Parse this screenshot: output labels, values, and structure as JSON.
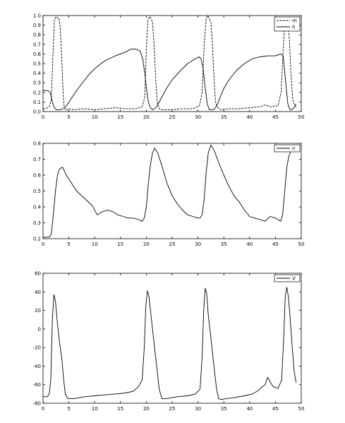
{
  "chart_data": [
    {
      "type": "line",
      "xlim": [
        0,
        50
      ],
      "ylim": [
        0,
        1.0
      ],
      "xticks": [
        0,
        5,
        10,
        15,
        20,
        25,
        30,
        35,
        40,
        45,
        50
      ],
      "yticks": [
        0.0,
        0.1,
        0.2,
        0.3,
        0.4,
        0.5,
        0.6,
        0.7,
        0.8,
        0.9,
        1.0
      ],
      "ytick_labels": [
        "0.0",
        "0.1",
        "0.2",
        "0.3",
        "0.4",
        "0.5",
        "0.6",
        "0.7",
        "0.8",
        "0.9",
        "1.0"
      ],
      "grid": false,
      "legend_position": "top-right",
      "series": [
        {
          "name": "m",
          "style": "dashed",
          "color": "#000000",
          "x": [
            0.0,
            0.6,
            1.2,
            1.6,
            1.9,
            2.2,
            2.4,
            2.6,
            2.9,
            3.1,
            3.3,
            3.5,
            3.7,
            3.9,
            4.1,
            4.3,
            4.6,
            5.0,
            6.0,
            8.0,
            10.0,
            12.0,
            14.0,
            16.0,
            18.0,
            19.2,
            19.7,
            20.0,
            20.3,
            20.6,
            20.9,
            21.2,
            21.5,
            21.8,
            22.1,
            22.5,
            23.0,
            25.0,
            27.0,
            29.0,
            30.3,
            30.8,
            31.2,
            31.6,
            31.9,
            32.2,
            32.5,
            32.8,
            33.1,
            33.4,
            33.8,
            34.5,
            36.0,
            38.0,
            40.0,
            42.0,
            43.0,
            44.0,
            45.5,
            46.1,
            46.5,
            46.8,
            47.1,
            47.4,
            47.7,
            48.0,
            48.3,
            48.6,
            49.0
          ],
          "y": [
            0.03,
            0.03,
            0.05,
            0.12,
            0.55,
            0.95,
            0.98,
            0.99,
            0.97,
            0.97,
            0.88,
            0.7,
            0.45,
            0.18,
            0.05,
            0.02,
            0.02,
            0.03,
            0.02,
            0.03,
            0.02,
            0.03,
            0.04,
            0.03,
            0.03,
            0.05,
            0.15,
            0.65,
            0.95,
            0.99,
            0.97,
            0.93,
            0.7,
            0.35,
            0.1,
            0.03,
            0.02,
            0.02,
            0.03,
            0.03,
            0.06,
            0.2,
            0.7,
            0.97,
            1.0,
            0.97,
            0.93,
            0.7,
            0.35,
            0.1,
            0.04,
            0.02,
            0.03,
            0.03,
            0.04,
            0.05,
            0.07,
            0.05,
            0.06,
            0.2,
            0.65,
            0.9,
            0.95,
            0.9,
            0.75,
            0.4,
            0.15,
            0.08,
            0.05
          ]
        },
        {
          "name": "h",
          "style": "solid",
          "color": "#000000",
          "x": [
            0.0,
            0.8,
            1.4,
            1.8,
            2.2,
            2.6,
            3.0,
            3.4,
            3.8,
            4.2,
            4.8,
            5.5,
            6.5,
            7.5,
            8.5,
            9.5,
            10.5,
            12.0,
            14.0,
            16.0,
            17.0,
            18.0,
            18.8,
            19.3,
            19.7,
            20.0,
            20.4,
            20.8,
            21.2,
            21.6,
            22.0,
            22.5,
            23.2,
            24.0,
            25.0,
            26.5,
            28.0,
            29.5,
            30.2,
            30.6,
            31.0,
            31.4,
            31.8,
            32.2,
            32.6,
            33.0,
            33.4,
            33.8,
            34.3,
            35.0,
            36.0,
            37.5,
            39.0,
            40.5,
            42.0,
            43.5,
            45.0,
            46.0,
            46.5,
            47.0,
            47.4,
            47.8,
            48.2,
            48.6,
            49.0
          ],
          "y": [
            0.22,
            0.22,
            0.2,
            0.1,
            0.04,
            0.02,
            0.02,
            0.02,
            0.03,
            0.04,
            0.08,
            0.14,
            0.22,
            0.29,
            0.36,
            0.42,
            0.47,
            0.53,
            0.58,
            0.62,
            0.65,
            0.65,
            0.63,
            0.55,
            0.4,
            0.25,
            0.1,
            0.04,
            0.02,
            0.03,
            0.05,
            0.1,
            0.17,
            0.25,
            0.33,
            0.42,
            0.5,
            0.55,
            0.57,
            0.55,
            0.45,
            0.25,
            0.08,
            0.02,
            0.02,
            0.02,
            0.04,
            0.08,
            0.15,
            0.24,
            0.33,
            0.43,
            0.5,
            0.55,
            0.57,
            0.58,
            0.58,
            0.6,
            0.58,
            0.3,
            0.08,
            0.02,
            0.02,
            0.04,
            0.08
          ]
        }
      ]
    },
    {
      "type": "line",
      "xlim": [
        0,
        50
      ],
      "ylim": [
        0.2,
        0.8
      ],
      "xticks": [
        0,
        5,
        10,
        15,
        20,
        25,
        30,
        35,
        40,
        45,
        50
      ],
      "yticks": [
        0.2,
        0.3,
        0.4,
        0.5,
        0.6,
        0.7,
        0.8
      ],
      "ytick_labels": [
        "0.2",
        "0.3",
        "0.4",
        "0.5",
        "0.6",
        "0.7",
        "0.8"
      ],
      "grid": false,
      "legend_position": "top-right",
      "series": [
        {
          "name": "n",
          "style": "solid",
          "color": "#000000",
          "x": [
            0.0,
            1.2,
            1.6,
            2.0,
            2.4,
            2.8,
            3.2,
            3.8,
            4.5,
            5.5,
            6.5,
            7.5,
            8.5,
            9.5,
            10.5,
            11.5,
            12.5,
            13.5,
            14.5,
            15.5,
            16.5,
            17.5,
            18.5,
            19.2,
            19.6,
            20.0,
            20.4,
            20.8,
            21.2,
            21.6,
            22.2,
            23.0,
            24.0,
            25.0,
            26.0,
            27.0,
            28.0,
            29.0,
            30.0,
            30.4,
            30.8,
            31.2,
            31.6,
            32.0,
            32.5,
            33.2,
            34.0,
            35.0,
            36.0,
            37.0,
            38.0,
            39.0,
            40.0,
            41.0,
            42.0,
            43.0,
            44.0,
            45.0,
            46.0,
            46.4,
            46.8,
            47.2,
            47.6,
            48.0,
            48.4
          ],
          "y": [
            0.21,
            0.21,
            0.23,
            0.35,
            0.5,
            0.6,
            0.64,
            0.65,
            0.6,
            0.55,
            0.5,
            0.47,
            0.44,
            0.41,
            0.35,
            0.37,
            0.38,
            0.37,
            0.35,
            0.34,
            0.33,
            0.33,
            0.32,
            0.31,
            0.33,
            0.4,
            0.55,
            0.67,
            0.74,
            0.77,
            0.74,
            0.66,
            0.55,
            0.47,
            0.42,
            0.38,
            0.35,
            0.34,
            0.33,
            0.33,
            0.35,
            0.45,
            0.62,
            0.74,
            0.79,
            0.75,
            0.68,
            0.6,
            0.53,
            0.47,
            0.43,
            0.38,
            0.34,
            0.33,
            0.32,
            0.31,
            0.34,
            0.33,
            0.31,
            0.35,
            0.5,
            0.65,
            0.72,
            0.75,
            0.78
          ]
        }
      ]
    },
    {
      "type": "line",
      "xlim": [
        0,
        50
      ],
      "ylim": [
        -80,
        60
      ],
      "xticks": [
        0,
        5,
        10,
        15,
        20,
        25,
        30,
        35,
        40,
        45,
        50
      ],
      "yticks": [
        -80,
        -60,
        -40,
        -20,
        0,
        20,
        40,
        60
      ],
      "ytick_labels": [
        "-80",
        "-60",
        "-40",
        "-20",
        "0",
        "20",
        "40",
        "60"
      ],
      "grid": false,
      "legend_position": "top-right",
      "series": [
        {
          "name": "V",
          "style": "solid",
          "color": "#000000",
          "x": [
            0.0,
            0.8,
            1.2,
            1.5,
            1.8,
            2.1,
            2.4,
            2.8,
            3.2,
            3.6,
            4.0,
            4.3,
            4.8,
            6.0,
            8.0,
            10.0,
            12.0,
            14.0,
            16.0,
            17.5,
            18.5,
            19.2,
            19.6,
            19.9,
            20.2,
            20.5,
            20.9,
            21.3,
            21.7,
            22.1,
            22.5,
            23.0,
            24.0,
            26.0,
            28.0,
            29.5,
            30.4,
            30.8,
            31.1,
            31.4,
            31.7,
            32.0,
            32.4,
            32.8,
            33.2,
            33.6,
            34.0,
            34.5,
            35.5,
            37.0,
            39.0,
            40.5,
            41.5,
            42.3,
            43.0,
            43.5,
            44.5,
            45.5,
            46.2,
            46.6,
            46.9,
            47.2,
            47.5,
            47.8,
            48.2,
            48.6,
            49.0
          ],
          "y": [
            -73,
            -73,
            -70,
            -55,
            10,
            37,
            30,
            5,
            -15,
            -30,
            -55,
            -70,
            -75,
            -75,
            -73,
            -72,
            -71,
            -70,
            -69,
            -67,
            -62,
            -55,
            -20,
            25,
            41,
            35,
            15,
            -5,
            -25,
            -45,
            -65,
            -75,
            -75,
            -73,
            -72,
            -70,
            -65,
            -30,
            20,
            44,
            38,
            15,
            -5,
            -25,
            -45,
            -65,
            -75,
            -76,
            -75,
            -74,
            -72,
            -70,
            -67,
            -63,
            -60,
            -52,
            -62,
            -64,
            -55,
            -10,
            35,
            45,
            35,
            15,
            -15,
            -45,
            -58
          ]
        }
      ]
    }
  ]
}
